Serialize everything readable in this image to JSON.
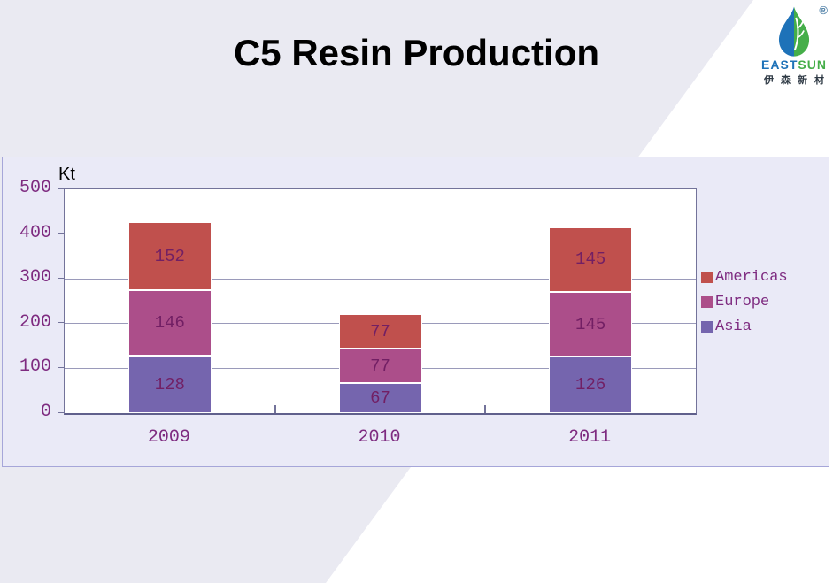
{
  "page": {
    "title": "C5 Resin Production",
    "background_color": "#EAEAF2",
    "diagonal_highlight_color": "#FFFFFF"
  },
  "logo": {
    "registered_mark": "®",
    "brand_east": "EAST",
    "brand_sun": "SUN",
    "chinese_name": "伊森新材",
    "blue": "#1E72B8",
    "green": "#45AE49",
    "mark_color": "#4E7FA6"
  },
  "chart_data": {
    "type": "bar",
    "stacked": true,
    "unit_label": "Kt",
    "categories": [
      "2009",
      "2010",
      "2011"
    ],
    "series": [
      {
        "name": "Americas",
        "color": "#C0504D",
        "values": [
          152,
          77,
          145
        ]
      },
      {
        "name": "Europe",
        "color": "#AC4E8A",
        "values": [
          146,
          77,
          145
        ]
      },
      {
        "name": "Asia",
        "color": "#7565AE",
        "values": [
          128,
          67,
          126
        ]
      }
    ],
    "stack_totals": [
      426,
      221,
      416
    ],
    "ylim": [
      0,
      500
    ],
    "yticks": [
      0,
      100,
      200,
      300,
      400,
      500
    ],
    "grid": true,
    "legend_position": "right",
    "legend_order": [
      "Americas",
      "Europe",
      "Asia"
    ],
    "text_color": "#7E2B80",
    "data_label_color": "#721F64"
  }
}
